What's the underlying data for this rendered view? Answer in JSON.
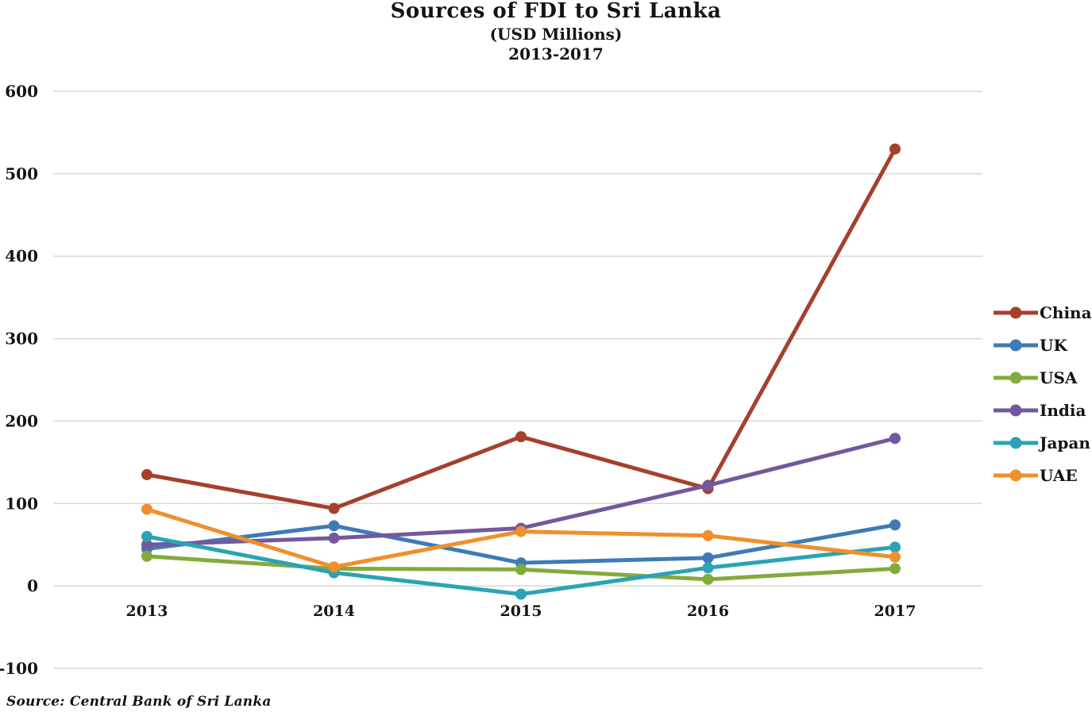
{
  "page": {
    "title": "Sources of FDI to Sri Lanka",
    "subtitle": "(USD Millions)",
    "period": "2013-2017",
    "source_note": "Source: Central Bank of Sri Lanka"
  },
  "chart_data": {
    "type": "line",
    "title": "Sources of FDI to Sri Lanka",
    "subtitle": "(USD Millions)",
    "period": "2013-2017",
    "categories": [
      "2013",
      "2014",
      "2015",
      "2016",
      "2017"
    ],
    "ylim": [
      -100,
      600
    ],
    "yticks": [
      600,
      500,
      400,
      300,
      200,
      100,
      0,
      -100
    ],
    "grid": "horizontal",
    "gridline_color": "#D8D8D0",
    "legend_position": "right",
    "xlabel": "",
    "ylabel": "",
    "series": [
      {
        "name": "China",
        "color": "#A5402D",
        "values": [
          135,
          94,
          181,
          118,
          530
        ]
      },
      {
        "name": "UK",
        "color": "#3E7BB6",
        "values": [
          45,
          73,
          28,
          34,
          74
        ]
      },
      {
        "name": "USA",
        "color": "#82AB3C",
        "values": [
          36,
          21,
          20,
          8,
          21
        ]
      },
      {
        "name": "India",
        "color": "#73589D",
        "values": [
          50,
          58,
          70,
          122,
          179
        ]
      },
      {
        "name": "Japan",
        "color": "#2BA3B4",
        "values": [
          60,
          16,
          -10,
          22,
          47
        ]
      },
      {
        "name": "UAE",
        "color": "#EF8F2E",
        "values": [
          93,
          23,
          66,
          61,
          35
        ]
      }
    ]
  }
}
